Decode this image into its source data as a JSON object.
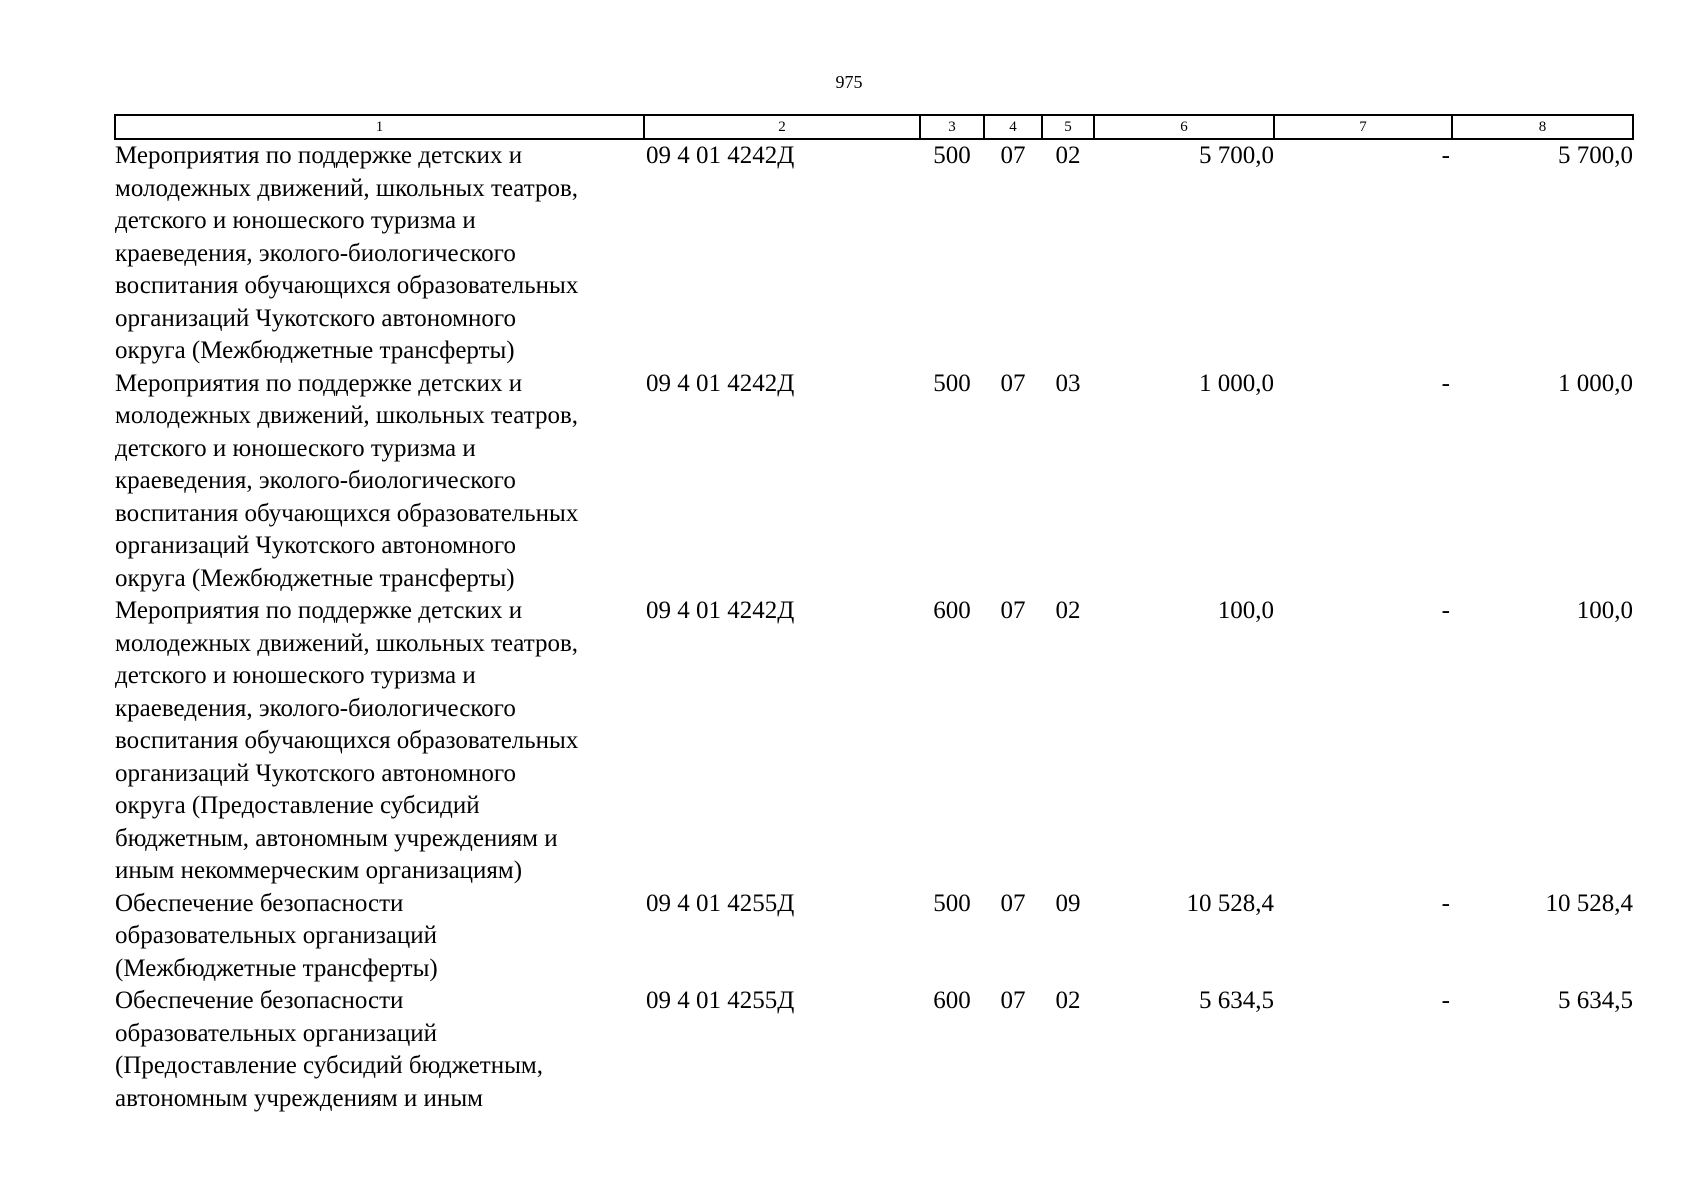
{
  "page_number": "975",
  "table": {
    "headers": [
      "1",
      "2",
      "3",
      "4",
      "5",
      "6",
      "7",
      "8"
    ],
    "rows": [
      {
        "name_lines": [
          "Мероприятия по поддержке детских и",
          "молодежных движений, школьных театров,",
          "детского и юношеского туризма и",
          "краеведения, эколого-биологического",
          "воспитания обучающихся образовательных",
          "организаций Чукотского автономного",
          "округа (Межбюджетные трансферты)"
        ],
        "code": "09 4 01 4242Д",
        "c3": "500",
        "c4": "07",
        "c5": "02",
        "c6": "5 700,0",
        "c7": "-",
        "c8": "5 700,0"
      },
      {
        "name_lines": [
          "Мероприятия по поддержке детских и",
          "молодежных движений, школьных театров,",
          "детского и юношеского туризма и",
          "краеведения, эколого-биологического",
          "воспитания обучающихся образовательных",
          "организаций Чукотского автономного",
          "округа (Межбюджетные трансферты)"
        ],
        "code": "09 4 01 4242Д",
        "c3": "500",
        "c4": "07",
        "c5": "03",
        "c6": "1 000,0",
        "c7": "-",
        "c8": "1 000,0"
      },
      {
        "name_lines": [
          "Мероприятия по поддержке детских и",
          "молодежных движений, школьных театров,",
          "детского и юношеского туризма и",
          "краеведения, эколого-биологического",
          "воспитания обучающихся образовательных",
          "организаций Чукотского автономного",
          "округа (Предоставление субсидий",
          "бюджетным, автономным учреждениям и",
          "иным некоммерческим организациям)"
        ],
        "code": "09 4 01 4242Д",
        "c3": "600",
        "c4": "07",
        "c5": "02",
        "c6": "100,0",
        "c7": "-",
        "c8": "100,0"
      },
      {
        "name_lines": [
          "Обеспечение безопасности",
          "образовательных организаций",
          "(Межбюджетные трансферты)"
        ],
        "code": "09 4 01 4255Д",
        "c3": "500",
        "c4": "07",
        "c5": "09",
        "c6": "10 528,4",
        "c7": "-",
        "c8": "10 528,4"
      },
      {
        "name_lines": [
          "Обеспечение безопасности",
          "образовательных организаций",
          "(Предоставление субсидий бюджетным,",
          "автономным учреждениям и иным"
        ],
        "code": "09 4 01 4255Д",
        "c3": "600",
        "c4": "07",
        "c5": "02",
        "c6": "5 634,5",
        "c7": "-",
        "c8": "5 634,5"
      }
    ]
  }
}
